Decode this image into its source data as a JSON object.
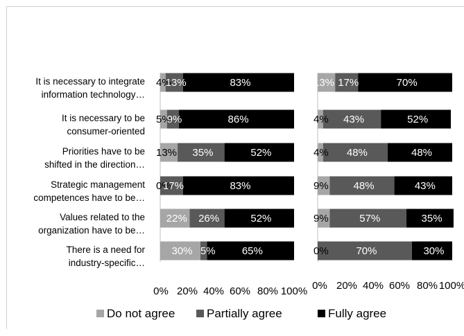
{
  "chart_data": [
    {
      "type": "bar",
      "orientation": "horizontal",
      "stacked": true,
      "normalized": true,
      "categories": [
        "It is necessary to integrate information technology…",
        "It is necessary to be consumer-oriented",
        "Priorities have to be shifted in the direction…",
        "Strategic management competences have to be…",
        "Values related to the organization have to be…",
        "There is a need for industry-specific…"
      ],
      "series": [
        {
          "name": "Do not agree",
          "color": "#a6a6a6",
          "values": [
            4,
            5,
            13,
            0,
            22,
            30
          ]
        },
        {
          "name": "Partially agree",
          "color": "#595959",
          "values": [
            13,
            9,
            35,
            17,
            26,
            5
          ]
        },
        {
          "name": "Fully agree",
          "color": "#000000",
          "values": [
            83,
            86,
            52,
            83,
            52,
            65
          ]
        }
      ],
      "xlim": [
        0,
        100
      ],
      "xticks": [
        "0%",
        "20%",
        "40%",
        "60%",
        "80%",
        "100%"
      ]
    },
    {
      "type": "bar",
      "orientation": "horizontal",
      "stacked": true,
      "normalized": true,
      "series": [
        {
          "name": "Do not agree",
          "color": "#a6a6a6",
          "values": [
            13,
            4,
            4,
            9,
            9,
            0
          ]
        },
        {
          "name": "Partially agree",
          "color": "#595959",
          "values": [
            17,
            43,
            48,
            48,
            57,
            70
          ]
        },
        {
          "name": "Fully agree",
          "color": "#000000",
          "values": [
            70,
            52,
            48,
            43,
            35,
            30
          ]
        }
      ],
      "xlim": [
        0,
        100
      ],
      "xticks": [
        "0%",
        "20%",
        "40%",
        "60%",
        "80%",
        "100%"
      ]
    }
  ],
  "legend": {
    "position": "bottom",
    "items": [
      {
        "label": "Do not agree",
        "color": "#a6a6a6"
      },
      {
        "label": "Partially agree",
        "color": "#595959"
      },
      {
        "label": "Fully agree",
        "color": "#000000"
      }
    ]
  }
}
